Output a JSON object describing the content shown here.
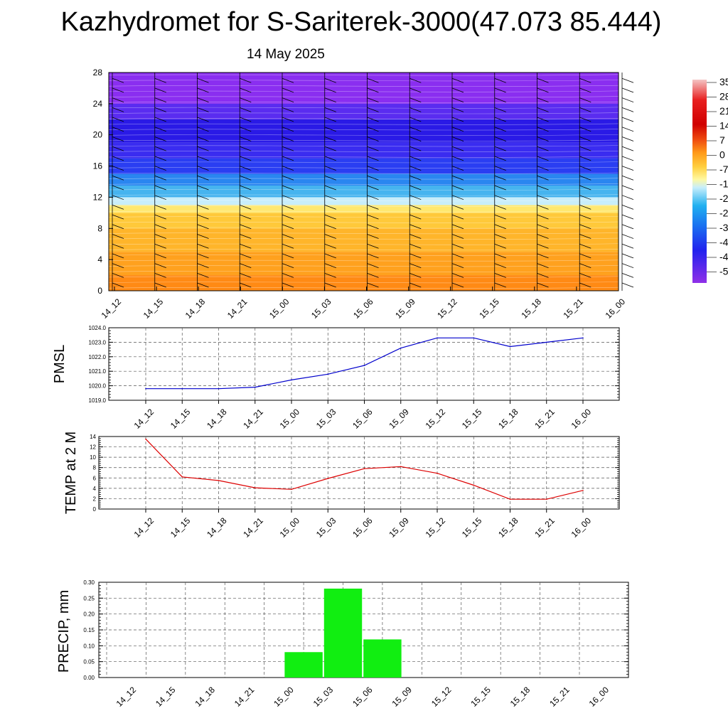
{
  "header": {
    "title": "Kazhydromet for S-Sariterek-3000(47.073 85.444)",
    "subtitle": "14 May 2025"
  },
  "chart_data": [
    {
      "type": "heatmap",
      "description_of_content": "time-height temperature cross section with wind barbs",
      "ylim": [
        0,
        28
      ],
      "y_ticks": [
        "0",
        "4",
        "8",
        "12",
        "16",
        "20",
        "24",
        "28"
      ],
      "x_ticks": [
        "14_12",
        "14_15",
        "14_18",
        "14_21",
        "15_00",
        "15_03",
        "15_06",
        "15_09",
        "15_12",
        "15_15",
        "15_18",
        "15_21",
        "16_00"
      ],
      "colorbar_labels": [
        "35",
        "28",
        "21",
        "14",
        "7",
        "0",
        "-7",
        "-1",
        "-2",
        "-2",
        "-3",
        "-4",
        "-4",
        "-5"
      ],
      "color_bands": [
        {
          "y_from": 0,
          "y_to": 2,
          "color": "#ff8a14"
        },
        {
          "y_from": 2,
          "y_to": 5,
          "color": "#ffa11e"
        },
        {
          "y_from": 5,
          "y_to": 8,
          "color": "#ffb52a"
        },
        {
          "y_from": 8,
          "y_to": 10,
          "color": "#ffc93a"
        },
        {
          "y_from": 10,
          "y_to": 11,
          "color": "#ffe870"
        },
        {
          "y_from": 11,
          "y_to": 12,
          "color": "#c8eefb"
        },
        {
          "y_from": 12,
          "y_to": 13.5,
          "color": "#46b4ef"
        },
        {
          "y_from": 13.5,
          "y_to": 15,
          "color": "#2a86f0"
        },
        {
          "y_from": 15,
          "y_to": 17,
          "color": "#2a3ef2"
        },
        {
          "y_from": 17,
          "y_to": 19,
          "color": "#3a2cf0"
        },
        {
          "y_from": 19,
          "y_to": 22,
          "color": "#2a1ae6"
        },
        {
          "y_from": 22,
          "y_to": 24,
          "color": "#5a2cf0"
        },
        {
          "y_from": 24,
          "y_to": 28,
          "color": "#8a2ef0"
        }
      ]
    },
    {
      "type": "line",
      "ylabel": "PMSL",
      "ylim": [
        1019,
        1024
      ],
      "y_ticks": [
        "1019.0",
        "1020.0",
        "1021.0",
        "1022.0",
        "1023.0",
        "1024.0"
      ],
      "x": [
        "14_12",
        "14_15",
        "14_18",
        "14_21",
        "15_00",
        "15_03",
        "15_06",
        "15_09",
        "15_12",
        "15_15",
        "15_18",
        "15_21",
        "16_00"
      ],
      "series": [
        {
          "values": [
            1019.8,
            1019.8,
            1019.8,
            1019.9,
            1020.4,
            1020.8,
            1021.4,
            1022.6,
            1023.3,
            1023.3,
            1022.7,
            1023.0,
            1023.3
          ],
          "color": "#0000cc"
        }
      ]
    },
    {
      "type": "line",
      "ylabel": "TEMP at 2 M",
      "ylim": [
        0,
        14
      ],
      "y_ticks": [
        "0",
        "2",
        "4",
        "6",
        "8",
        "10",
        "12",
        "14"
      ],
      "x": [
        "14_12",
        "14_15",
        "14_18",
        "14_21",
        "15_00",
        "15_03",
        "15_06",
        "15_09",
        "15_12",
        "15_15",
        "15_18",
        "15_21",
        "16_00"
      ],
      "series": [
        {
          "values": [
            13.5,
            6.2,
            5.5,
            4.1,
            3.8,
            5.9,
            7.8,
            8.2,
            6.9,
            4.6,
            1.9,
            1.9,
            3.6
          ],
          "color": "#dd0000"
        }
      ]
    },
    {
      "type": "bar",
      "ylabel": "PRECIP, mm",
      "ylim": [
        0,
        0.3
      ],
      "y_ticks": [
        "0.00",
        "0.05",
        "0.10",
        "0.15",
        "0.20",
        "0.25",
        "0.30"
      ],
      "categories": [
        "14_12",
        "14_15",
        "14_18",
        "14_21",
        "15_00",
        "15_03",
        "15_06",
        "15_09",
        "15_12",
        "15_15",
        "15_18",
        "15_21",
        "16_00"
      ],
      "values": [
        0,
        0,
        0,
        0,
        0,
        0.08,
        0.28,
        0.12,
        0,
        0,
        0,
        0,
        0
      ],
      "bar_color": "#11ee11"
    }
  ]
}
